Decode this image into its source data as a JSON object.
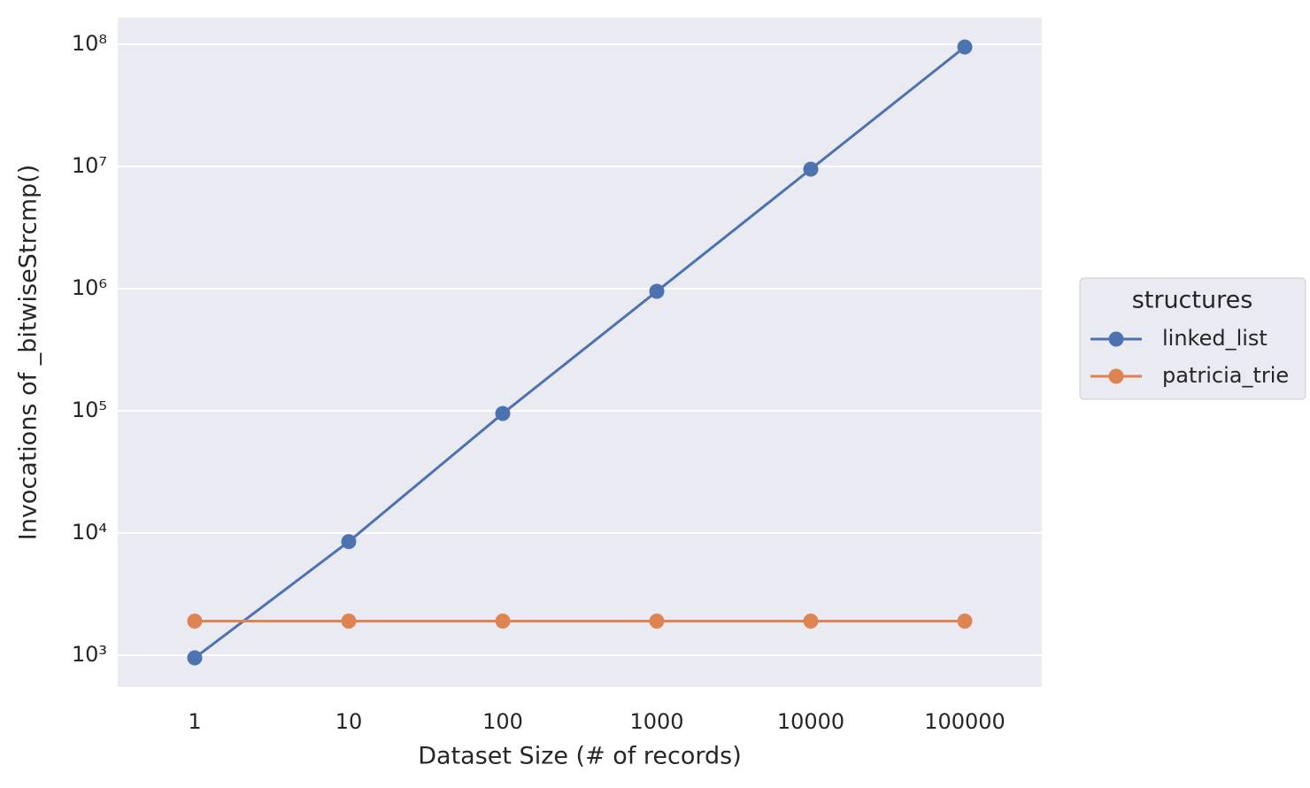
{
  "chart_data": {
    "type": "line",
    "x_label": "Dataset Size (# of records)",
    "y_label": "Invocations of _bitwiseStrcmp()",
    "categories": [
      "1",
      "10",
      "100",
      "1000",
      "10000",
      "100000"
    ],
    "series": [
      {
        "name": "linked_list",
        "color": "#4c72b0",
        "values": [
          950,
          8500,
          95000,
          950000,
          9500000,
          95000000
        ]
      },
      {
        "name": "patricia_trie",
        "color": "#dd8452",
        "values": [
          1900,
          1900,
          1900,
          1900,
          1900,
          1900
        ]
      }
    ],
    "log_y": true,
    "ylim": [
      548,
      165000000
    ],
    "yticks": [
      {
        "value": 1000,
        "label": "10³"
      },
      {
        "value": 10000,
        "label": "10⁴"
      },
      {
        "value": 100000,
        "label": "10⁵"
      },
      {
        "value": 1000000,
        "label": "10⁶"
      },
      {
        "value": 10000000,
        "label": "10⁷"
      },
      {
        "value": 100000000,
        "label": "10⁸"
      }
    ],
    "grid": true,
    "legend_title": "structures",
    "legend_position": "right"
  }
}
